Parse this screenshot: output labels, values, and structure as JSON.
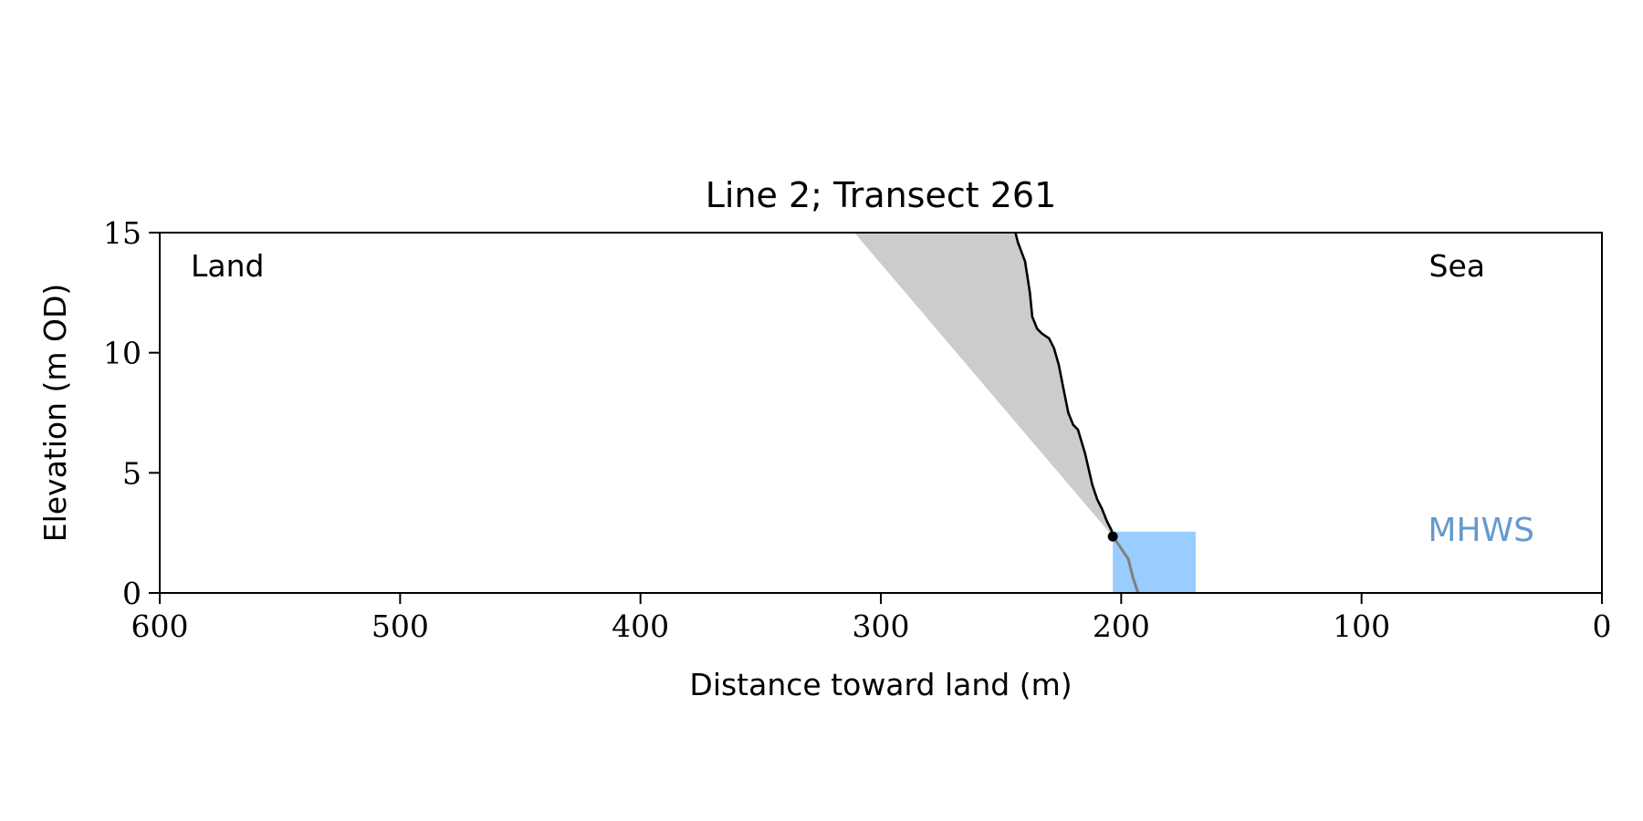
{
  "chart_data": {
    "type": "line",
    "title": "Line 2; Transect 261",
    "xlabel": "Distance toward land (m)",
    "ylabel": "Elevation (m OD)",
    "xlim": [
      600,
      0
    ],
    "ylim": [
      0,
      15
    ],
    "x_reversed": true,
    "xticks": [
      600,
      500,
      400,
      300,
      200,
      100,
      0
    ],
    "yticks": [
      0,
      5,
      10,
      15
    ],
    "grid": false,
    "annotations": {
      "left": "Land",
      "right": "Sea",
      "water_label": "MHWS"
    },
    "colors": {
      "profile": "#000000",
      "lower_profile": "#7f7f7f",
      "wedge": "#cccccc",
      "water": "#99ccff",
      "water_label": "#6699cc"
    },
    "profile": {
      "x": [
        244,
        243,
        240,
        238,
        237,
        235,
        233,
        230,
        228,
        226,
        224,
        222,
        220,
        218,
        215,
        212,
        210,
        208,
        206,
        204,
        203.5
      ],
      "y": [
        15,
        14.6,
        13.8,
        12.5,
        11.5,
        11,
        10.8,
        10.6,
        10.2,
        9.5,
        8.5,
        7.5,
        7,
        6.8,
        5.8,
        4.5,
        3.9,
        3.5,
        3,
        2.6,
        2.35
      ]
    },
    "lower_profile": {
      "x": [
        203.5,
        201,
        197,
        195,
        193
      ],
      "y": [
        2.35,
        2,
        1.4,
        0.6,
        0
      ]
    },
    "toe_point": {
      "x": 203.5,
      "y": 2.35
    },
    "wedge": {
      "x": [
        311,
        244,
        243,
        240,
        238,
        237,
        235,
        233,
        230,
        228,
        226,
        224,
        222,
        220,
        218,
        215,
        212,
        210,
        208,
        206,
        204,
        203.5
      ],
      "y": [
        15,
        15,
        14.6,
        13.8,
        12.5,
        11.5,
        11,
        10.8,
        10.6,
        10.2,
        9.5,
        8.5,
        7.5,
        7,
        6.8,
        5.8,
        4.5,
        3.9,
        3.5,
        3,
        2.6,
        2.35
      ]
    },
    "water": {
      "mhws": 2.55,
      "x_extent": [
        203.5,
        169
      ]
    }
  }
}
